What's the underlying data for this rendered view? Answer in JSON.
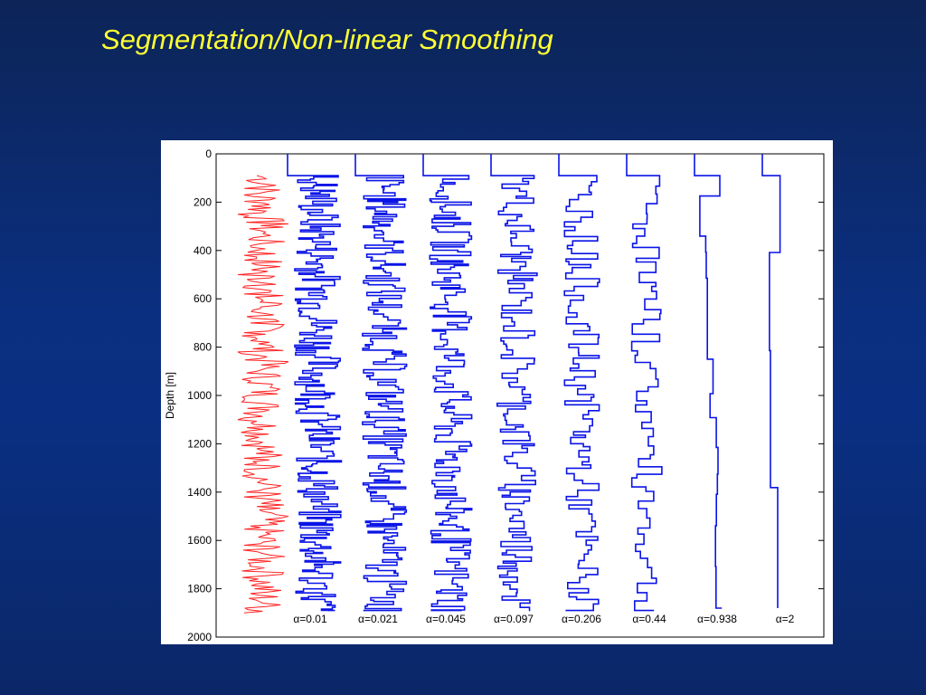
{
  "slide": {
    "title": "Segmentation/Non-linear Smoothing"
  },
  "colors": {
    "raw": "#ff2020",
    "smoothed": "#0a14e6",
    "axis": "#000000",
    "title": "#ffff33"
  },
  "chart_data": {
    "type": "line",
    "ylabel": "Depth [m]",
    "xlabel": "",
    "ylim": [
      0,
      2000
    ],
    "y_inverted": true,
    "yticks": [
      0,
      200,
      400,
      600,
      800,
      1000,
      1200,
      1400,
      1600,
      1800,
      2000
    ],
    "grid": false,
    "series": [
      {
        "name": "",
        "color": "#ff2020",
        "kind": "raw",
        "depth": [
          90,
          130,
          170,
          210,
          250,
          290,
          330,
          380,
          420,
          460,
          500,
          540,
          580,
          620,
          660,
          700,
          740,
          780,
          820,
          860,
          900,
          940,
          980,
          1020,
          1060,
          1100,
          1140,
          1180,
          1220,
          1260,
          1300,
          1340,
          1380,
          1420,
          1460,
          1500,
          1540,
          1580,
          1620,
          1660,
          1700,
          1740,
          1780,
          1820,
          1860,
          1900
        ],
        "value": [
          0.4,
          0.7,
          0.2,
          0.6,
          0.1,
          0.9,
          0.5,
          0.3,
          0.2,
          0.4,
          0.1,
          0.7,
          0.2,
          0.8,
          0.5,
          0.3,
          0.2,
          0.6,
          0.1,
          0.9,
          0.4,
          0.3,
          0.7,
          0.2,
          0.6,
          0.1,
          0.5,
          0.3,
          0.4,
          0.2,
          0.6,
          0.3,
          0.7,
          0.2,
          0.4,
          0.9,
          0.3,
          0.5,
          0.2,
          0.6,
          0.3,
          0.8,
          0.4,
          0.3,
          0.5,
          0.2
        ]
      },
      {
        "name": "α=0.01"
      },
      {
        "name": "α=0.021"
      },
      {
        "name": "α=0.045"
      },
      {
        "name": "α=0.097"
      },
      {
        "name": "α=0.206"
      },
      {
        "name": "α=0.44"
      },
      {
        "name": "α=0.938"
      },
      {
        "name": "α=2"
      }
    ]
  }
}
